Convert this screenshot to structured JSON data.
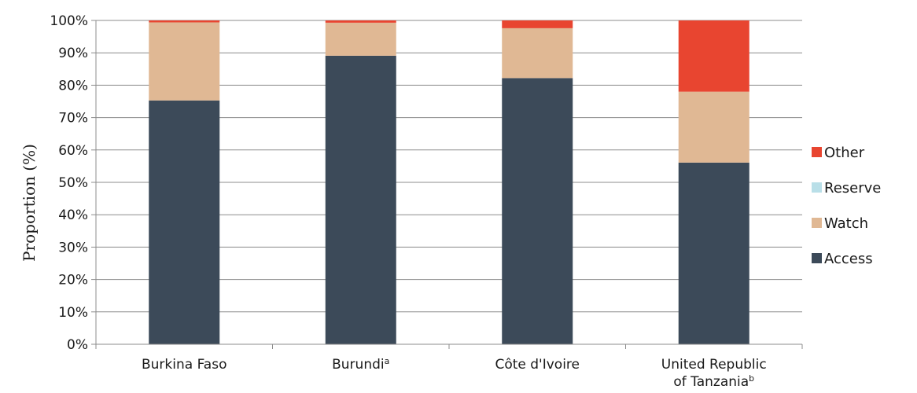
{
  "chart_data": {
    "type": "bar",
    "stacked": true,
    "title": "",
    "xlabel": "",
    "ylabel": "Proportion (%)",
    "ylim": [
      0,
      100
    ],
    "y_ticks": [
      "0%",
      "10%",
      "20%",
      "30%",
      "40%",
      "50%",
      "60%",
      "70%",
      "80%",
      "90%",
      "100%"
    ],
    "categories": [
      "Burkina Faso",
      "Burundi",
      "Côte d'Ivoire",
      "United Republic of Tanzania"
    ],
    "category_display": [
      {
        "lines": [
          "Burkina Faso"
        ],
        "sup": ""
      },
      {
        "lines": [
          "Burundi"
        ],
        "sup": "a"
      },
      {
        "lines": [
          "Côte d'Ivoire"
        ],
        "sup": ""
      },
      {
        "lines": [
          "United Republic",
          "of Tanzania"
        ],
        "sup": "b"
      }
    ],
    "series": [
      {
        "name": "Access",
        "color": "#3c4a59",
        "values": [
          75.3,
          89.1,
          82.2,
          56.1
        ]
      },
      {
        "name": "Watch",
        "color": "#e0b894",
        "values": [
          24.1,
          10.2,
          15.4,
          21.9
        ]
      },
      {
        "name": "Reserve",
        "color": "#b9dfe8",
        "values": [
          0,
          0,
          0,
          0
        ]
      },
      {
        "name": "Other",
        "color": "#e84530",
        "values": [
          0.6,
          0.7,
          2.4,
          22.0
        ]
      }
    ],
    "legend_order": [
      "Other",
      "Reserve",
      "Watch",
      "Access"
    ],
    "legend_position": "right",
    "grid": true
  }
}
